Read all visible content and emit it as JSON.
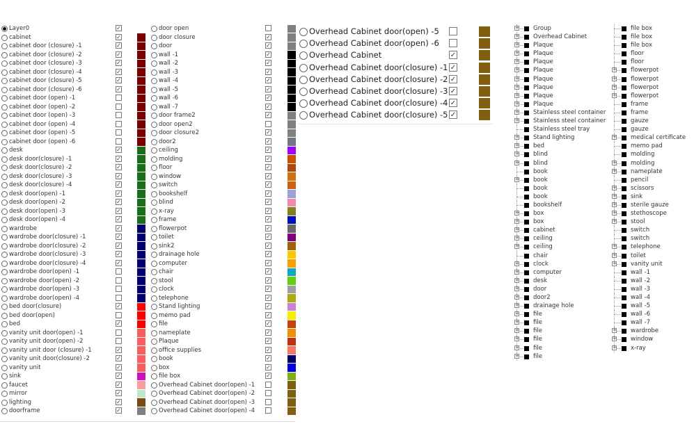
{
  "layers_col1": [
    {
      "name": "Layer0",
      "visible": true,
      "color": "",
      "selected": true
    },
    {
      "name": "cabinet",
      "visible": true,
      "color": "#7a0000"
    },
    {
      "name": "cabinet door (closure) -1",
      "visible": true,
      "color": "#7a0000"
    },
    {
      "name": "cabinet door (closure) -2",
      "visible": true,
      "color": "#7a0000"
    },
    {
      "name": "cabinet door (closure) -3",
      "visible": true,
      "color": "#7a0000"
    },
    {
      "name": "cabinet door (closure) -4",
      "visible": true,
      "color": "#7a0000"
    },
    {
      "name": "cabinet door (closure) -5",
      "visible": true,
      "color": "#7a0000"
    },
    {
      "name": "cabinet door (closure) -6",
      "visible": true,
      "color": "#7a0000"
    },
    {
      "name": "cabinet door (open) -1",
      "visible": false,
      "color": "#7a0000"
    },
    {
      "name": "cabinet door (open) -2",
      "visible": false,
      "color": "#7a0000"
    },
    {
      "name": "cabinet door (open) -3",
      "visible": false,
      "color": "#7a0000"
    },
    {
      "name": "cabinet door (open) -4",
      "visible": false,
      "color": "#7a0000"
    },
    {
      "name": "cabinet door (open) -5",
      "visible": false,
      "color": "#7a0000"
    },
    {
      "name": "cabinet door (open) -6",
      "visible": false,
      "color": "#7a0000"
    },
    {
      "name": "desk",
      "visible": true,
      "color": "#1a6e1a"
    },
    {
      "name": "desk door(closure) -1",
      "visible": true,
      "color": "#1a6e1a"
    },
    {
      "name": "desk door(closure) -2",
      "visible": true,
      "color": "#1a6e1a"
    },
    {
      "name": "desk door(closure) -3",
      "visible": true,
      "color": "#1a6e1a"
    },
    {
      "name": "desk door(closure) -4",
      "visible": true,
      "color": "#1a6e1a"
    },
    {
      "name": "desk door(open) -1",
      "visible": true,
      "color": "#1a6e1a"
    },
    {
      "name": "desk door(open) -2",
      "visible": true,
      "color": "#1a6e1a"
    },
    {
      "name": "desk door(open) -3",
      "visible": true,
      "color": "#1a6e1a"
    },
    {
      "name": "desk door(open) -4",
      "visible": true,
      "color": "#1a6e1a"
    },
    {
      "name": "wardrobe",
      "visible": true,
      "color": "#000070"
    },
    {
      "name": "wardrobe door(closure) -1",
      "visible": true,
      "color": "#000070"
    },
    {
      "name": "wardrobe door(closure) -2",
      "visible": true,
      "color": "#000070"
    },
    {
      "name": "wardrobe door(closure) -3",
      "visible": true,
      "color": "#000070"
    },
    {
      "name": "wardrobe door(closure) -4",
      "visible": true,
      "color": "#000070"
    },
    {
      "name": "wardrobe door(open) -1",
      "visible": false,
      "color": "#000070"
    },
    {
      "name": "wardrobe door(open) -2",
      "visible": false,
      "color": "#000070"
    },
    {
      "name": "wardrobe door(open) -3",
      "visible": false,
      "color": "#000070"
    },
    {
      "name": "wardrobe door(open) -4",
      "visible": false,
      "color": "#000070"
    },
    {
      "name": "bed door(closure)",
      "visible": true,
      "color": "#ff0000"
    },
    {
      "name": "bed door(open)",
      "visible": false,
      "color": "#ff0000"
    },
    {
      "name": "bed",
      "visible": true,
      "color": "#ff0000"
    },
    {
      "name": "vanity unit door(open) -1",
      "visible": false,
      "color": "#f86060"
    },
    {
      "name": "vanity unit door(open) -2",
      "visible": false,
      "color": "#f86060"
    },
    {
      "name": "vanity unit door (closure) -1",
      "visible": true,
      "color": "#f86060"
    },
    {
      "name": "vanity unit door(closure) -2",
      "visible": true,
      "color": "#f86060"
    },
    {
      "name": "vanity unit",
      "visible": true,
      "color": "#f86060"
    },
    {
      "name": "sink",
      "visible": true,
      "color": "#d010c0"
    },
    {
      "name": "faucet",
      "visible": true,
      "color": "#f8a0a0"
    },
    {
      "name": "mirror",
      "visible": true,
      "color": "#c0e8c8"
    },
    {
      "name": "lighting",
      "visible": true,
      "color": "#7a4a10"
    },
    {
      "name": "doorframe",
      "visible": true,
      "color": "#808080"
    }
  ],
  "layers_col2": [
    {
      "name": "door open",
      "visible": false,
      "color": "#808080"
    },
    {
      "name": "door closure",
      "visible": true,
      "color": "#808080"
    },
    {
      "name": "door",
      "visible": true,
      "color": "#808080"
    },
    {
      "name": "wall -1",
      "visible": true,
      "color": "#000000"
    },
    {
      "name": "wall -2",
      "visible": true,
      "color": "#000000"
    },
    {
      "name": "wall -3",
      "visible": true,
      "color": "#000000"
    },
    {
      "name": "wall -4",
      "visible": true,
      "color": "#000000"
    },
    {
      "name": "wall -5",
      "visible": true,
      "color": "#000000"
    },
    {
      "name": "wall -6",
      "visible": true,
      "color": "#000000"
    },
    {
      "name": "wall -7",
      "visible": true,
      "color": "#000000"
    },
    {
      "name": "door frame2",
      "visible": true,
      "color": "#808080"
    },
    {
      "name": "door open2",
      "visible": false,
      "color": "#808080"
    },
    {
      "name": "door closure2",
      "visible": true,
      "color": "#808080"
    },
    {
      "name": "door2",
      "visible": true,
      "color": "#707888"
    },
    {
      "name": "ceiling",
      "visible": true,
      "color": "#a000ff"
    },
    {
      "name": "molding",
      "visible": true,
      "color": "#d05000"
    },
    {
      "name": "floor",
      "visible": true,
      "color": "#b04810"
    },
    {
      "name": "window",
      "visible": true,
      "color": "#d07010"
    },
    {
      "name": "switch",
      "visible": true,
      "color": "#d06010"
    },
    {
      "name": "bookshelf",
      "visible": true,
      "color": "#a0a0d8"
    },
    {
      "name": "blind",
      "visible": true,
      "color": "#f088b0"
    },
    {
      "name": "x-ray",
      "visible": true,
      "color": "#808020"
    },
    {
      "name": "frame",
      "visible": true,
      "color": "#0010c0"
    },
    {
      "name": "flowerpot",
      "visible": true,
      "color": "#686868"
    },
    {
      "name": "toilet",
      "visible": true,
      "color": "#800080"
    },
    {
      "name": "sink2",
      "visible": true,
      "color": "#a06010"
    },
    {
      "name": "drainage hole",
      "visible": true,
      "color": "#f8c800"
    },
    {
      "name": "computer",
      "visible": true,
      "color": "#f8a000"
    },
    {
      "name": "chair",
      "visible": true,
      "color": "#10a8c0"
    },
    {
      "name": "stool",
      "visible": true,
      "color": "#60d010"
    },
    {
      "name": "clock",
      "visible": true,
      "color": "#a0a0a0"
    },
    {
      "name": "telephone",
      "visible": true,
      "color": "#b0a810"
    },
    {
      "name": "Stand lighting",
      "visible": true,
      "color": "#d080d0"
    },
    {
      "name": "memo pad",
      "visible": true,
      "color": "#f0f000"
    },
    {
      "name": "file",
      "visible": true,
      "color": "#c84010"
    },
    {
      "name": "nameplate",
      "visible": true,
      "color": "#f09000"
    },
    {
      "name": "Plaque",
      "visible": true,
      "color": "#c03010"
    },
    {
      "name": "office supplies",
      "visible": true,
      "color": "#f87868"
    },
    {
      "name": "book",
      "visible": true,
      "color": "#000068"
    },
    {
      "name": "box",
      "visible": true,
      "color": "#0000e0"
    },
    {
      "name": "file box",
      "visible": true,
      "color": "#80b010"
    },
    {
      "name": "Overhead Cabinet door(open) -1",
      "visible": false,
      "color": "#806010"
    },
    {
      "name": "Overhead Cabinet door(open) -2",
      "visible": false,
      "color": "#806010"
    },
    {
      "name": "Overhead Cabinet door(open) -3",
      "visible": false,
      "color": "#806010"
    },
    {
      "name": "Overhead Cabinet door(open) -4",
      "visible": false,
      "color": "#806010"
    }
  ],
  "layers_col3": [
    {
      "name": "Overhead Cabinet door(open) -5",
      "visible": false,
      "color": "#806010"
    },
    {
      "name": "Overhead Cabinet door(open) -6",
      "visible": false,
      "color": "#806010"
    },
    {
      "name": "Overhead Cabinet",
      "visible": true,
      "color": "#806010"
    },
    {
      "name": "Overhead Cabinet door(closure) -1",
      "visible": true,
      "color": "#806010"
    },
    {
      "name": "Overhead Cabinet door(closure) -2",
      "visible": true,
      "color": "#806010"
    },
    {
      "name": "Overhead Cabinet door(closure) -3",
      "visible": true,
      "color": "#806010"
    },
    {
      "name": "Overhead Cabinet door(closure) -4",
      "visible": true,
      "color": "#806010"
    },
    {
      "name": "Overhead Cabinet door(closure) -5",
      "visible": true,
      "color": "#806010"
    }
  ],
  "tree_col1": [
    {
      "name": "Group",
      "expandable": true
    },
    {
      "name": "Overhead Cabinet",
      "expandable": true
    },
    {
      "name": "Plaque",
      "expandable": true
    },
    {
      "name": "Plaque",
      "expandable": true
    },
    {
      "name": "Plaque",
      "expandable": true
    },
    {
      "name": "Plaque",
      "expandable": true
    },
    {
      "name": "Plaque",
      "expandable": true
    },
    {
      "name": "Plaque",
      "expandable": true
    },
    {
      "name": "Plaque",
      "expandable": true
    },
    {
      "name": "Plaque",
      "expandable": true
    },
    {
      "name": "Stainless steel container",
      "expandable": true
    },
    {
      "name": "Stainless steel container",
      "expandable": true
    },
    {
      "name": "Stainless steel tray",
      "expandable": false
    },
    {
      "name": "Stand lighting",
      "expandable": true
    },
    {
      "name": "bed",
      "expandable": true
    },
    {
      "name": "blind",
      "expandable": true
    },
    {
      "name": "blind",
      "expandable": true
    },
    {
      "name": "book",
      "expandable": false
    },
    {
      "name": "book",
      "expandable": true
    },
    {
      "name": "book",
      "expandable": false
    },
    {
      "name": "book",
      "expandable": false
    },
    {
      "name": "bookshelf",
      "expandable": false
    },
    {
      "name": "box",
      "expandable": true
    },
    {
      "name": "box",
      "expandable": true
    },
    {
      "name": "cabinet",
      "expandable": true
    },
    {
      "name": "ceiling",
      "expandable": true
    },
    {
      "name": "ceiling",
      "expandable": true
    },
    {
      "name": "chair",
      "expandable": false
    },
    {
      "name": "clock",
      "expandable": true
    },
    {
      "name": "computer",
      "expandable": true
    },
    {
      "name": "desk",
      "expandable": true
    },
    {
      "name": "door",
      "expandable": true
    },
    {
      "name": "door2",
      "expandable": true
    },
    {
      "name": "drainage hole",
      "expandable": true
    },
    {
      "name": "file",
      "expandable": true
    },
    {
      "name": "file",
      "expandable": true
    },
    {
      "name": "file",
      "expandable": true
    },
    {
      "name": "file",
      "expandable": true
    },
    {
      "name": "file",
      "expandable": true
    },
    {
      "name": "file",
      "expandable": true
    }
  ],
  "tree_col2": [
    {
      "name": "file box",
      "expandable": false
    },
    {
      "name": "file box",
      "expandable": false
    },
    {
      "name": "file box",
      "expandable": false
    },
    {
      "name": "floor",
      "expandable": false
    },
    {
      "name": "floor",
      "expandable": false
    },
    {
      "name": "flowerpot",
      "expandable": true
    },
    {
      "name": "flowerpot",
      "expandable": true
    },
    {
      "name": "flowerpot",
      "expandable": true
    },
    {
      "name": "flowerpot",
      "expandable": true
    },
    {
      "name": "frame",
      "expandable": false
    },
    {
      "name": "frame",
      "expandable": false
    },
    {
      "name": "gauze",
      "expandable": false
    },
    {
      "name": "gauze",
      "expandable": false
    },
    {
      "name": "medical certificate",
      "expandable": true
    },
    {
      "name": "memo pad",
      "expandable": false
    },
    {
      "name": "molding",
      "expandable": false
    },
    {
      "name": "molding",
      "expandable": true
    },
    {
      "name": "nameplate",
      "expandable": true
    },
    {
      "name": "pencil",
      "expandable": false
    },
    {
      "name": "scissors",
      "expandable": true
    },
    {
      "name": "sink",
      "expandable": true
    },
    {
      "name": "sterile gauze",
      "expandable": true
    },
    {
      "name": "stethoscope",
      "expandable": true
    },
    {
      "name": "stool",
      "expandable": true
    },
    {
      "name": "switch",
      "expandable": false
    },
    {
      "name": "switch",
      "expandable": false
    },
    {
      "name": "telephone",
      "expandable": true
    },
    {
      "name": "toilet",
      "expandable": true
    },
    {
      "name": "vanity unit",
      "expandable": true
    },
    {
      "name": "wall -1",
      "expandable": false
    },
    {
      "name": "wall -2",
      "expandable": false
    },
    {
      "name": "wall -3",
      "expandable": false
    },
    {
      "name": "wall -4",
      "expandable": false
    },
    {
      "name": "wall -5",
      "expandable": false
    },
    {
      "name": "wall -6",
      "expandable": false
    },
    {
      "name": "wall -7",
      "expandable": false
    },
    {
      "name": "wardrobe",
      "expandable": true
    },
    {
      "name": "window",
      "expandable": true
    },
    {
      "name": "x-ray",
      "expandable": true
    }
  ]
}
